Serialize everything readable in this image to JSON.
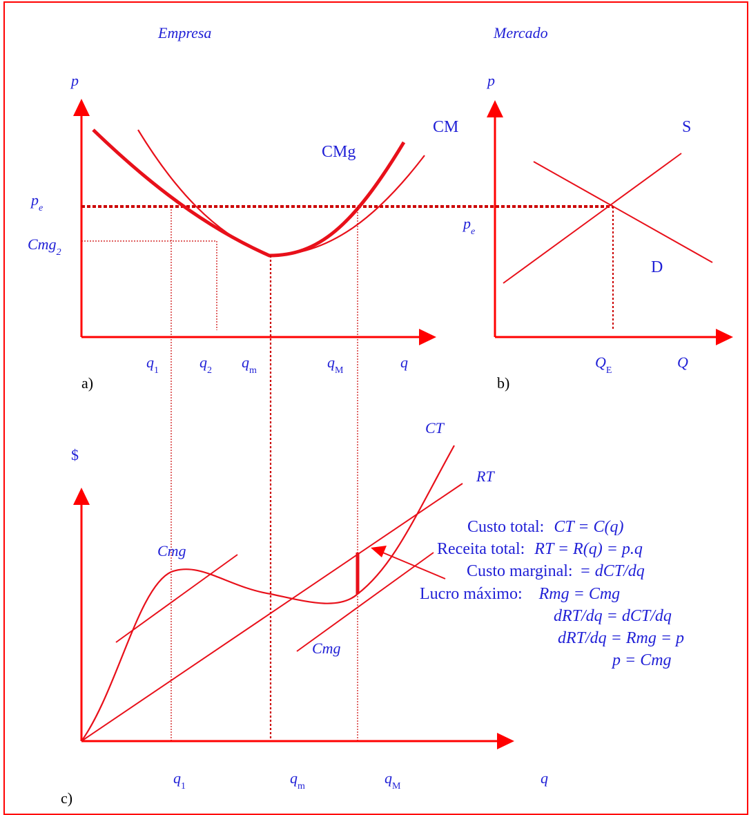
{
  "titles": {
    "left": "Empresa",
    "right": "Mercado"
  },
  "panel_a": {
    "y_axis": "p",
    "x_axis": "q",
    "curves": {
      "cm": "CM",
      "cmg": "CMg"
    },
    "price_label": "p",
    "price_sub": "e",
    "cost_label": "Cmg",
    "cost_sub": "2",
    "ticks": [
      {
        "main": "q",
        "sub": "1"
      },
      {
        "main": "q",
        "sub": "2"
      },
      {
        "main": "q",
        "sub": "m"
      },
      {
        "main": "q",
        "sub": "M"
      }
    ],
    "tag": "a)"
  },
  "panel_b": {
    "y_axis": "p",
    "x_axis": "Q",
    "supply": "S",
    "demand": "D",
    "price_label": "p",
    "price_sub": "e",
    "eq_main": "Q",
    "eq_sub": "E",
    "tag": "b)"
  },
  "panel_c": {
    "y_axis": "$",
    "x_axis": "q",
    "ct": "CT",
    "rt": "RT",
    "tangent_left": "Cmg",
    "tangent_right": "Cmg",
    "ticks": [
      {
        "main": "q",
        "sub": "1"
      },
      {
        "main": "q",
        "sub": "m"
      },
      {
        "main": "q",
        "sub": "M"
      }
    ],
    "tag": "c)"
  },
  "equations": [
    {
      "label": "Custo total:",
      "expr": "CT =  C(q)"
    },
    {
      "label": "Receita total:",
      "expr": "RT  = R(q) = p.q"
    },
    {
      "label": "Custo marginal:",
      "expr": "=  dCT/dq"
    },
    {
      "label": "Lucro máximo:",
      "expr": "Rmg = Cmg"
    },
    {
      "label": "",
      "expr": "dRT/dq =  dCT/dq"
    },
    {
      "label": "",
      "expr": "dRT/dq =  Rmg = p"
    },
    {
      "label": "",
      "expr": "p = Cmg"
    }
  ],
  "colors": {
    "curves": "#e8101a",
    "text": "#1f1fd6",
    "frame": "#ff0000"
  }
}
